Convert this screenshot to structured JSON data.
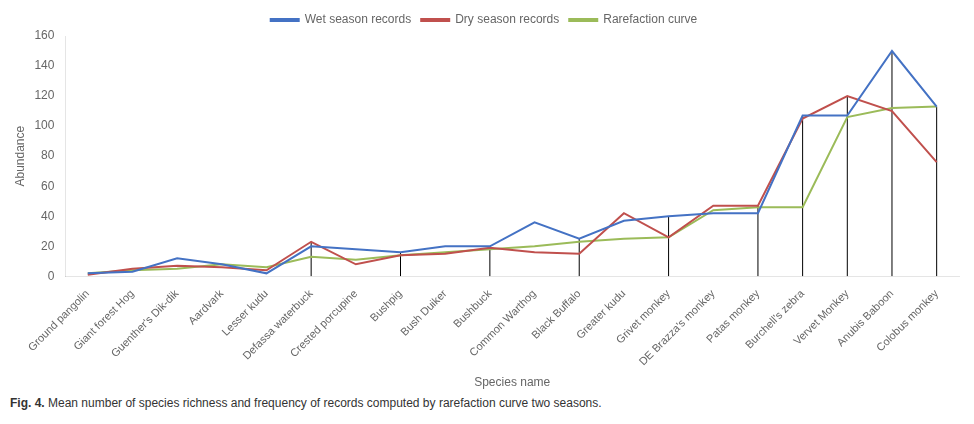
{
  "chart_data": {
    "type": "line",
    "xlabel": "Species name",
    "ylabel": "Abundance",
    "categories": [
      "Ground pangolin",
      "Giant forest Hog",
      "Guenther's Dik-dik",
      "Aardvark",
      "Lesser kudu",
      "Defassa waterbuck",
      "Crested porcupine",
      "Bushpig",
      "Bush Duiker",
      "Bushbuck",
      "Common Warthog",
      "Black Buffalo",
      "Greater kudu",
      "Grivet monkey",
      "DE Brazza's monkey",
      "Patas monkey",
      "Burchell's zebra",
      "Vervet Monkey",
      "Anubis Baboon",
      "Colobus monkey"
    ],
    "series": [
      {
        "name": "Wet season records",
        "color": "#4472C4",
        "values": [
          2,
          3,
          12,
          8,
          2,
          20,
          18,
          16,
          20,
          20,
          36,
          25,
          37,
          40,
          42,
          42,
          107,
          107,
          150,
          113
        ]
      },
      {
        "name": "Dry season records",
        "color": "#C0504D",
        "values": [
          1,
          5,
          7,
          6,
          4,
          23,
          8,
          14,
          15,
          19,
          16,
          15,
          42,
          26,
          47,
          47,
          105,
          120,
          110,
          76
        ]
      },
      {
        "name": "Rarefaction curve",
        "color": "#9BBB59",
        "values": [
          2,
          4,
          5,
          8,
          6,
          13,
          11,
          14,
          16,
          18,
          20,
          23,
          25,
          26,
          44,
          46,
          46,
          106,
          112,
          113
        ]
      }
    ],
    "vlines": [
      {
        "category": "Defassa waterbuck",
        "from": 0,
        "to": 23
      },
      {
        "category": "Bushpig",
        "from": 0,
        "to": 16
      },
      {
        "category": "Bushbuck",
        "from": 0,
        "to": 20
      },
      {
        "category": "Black Buffalo",
        "from": 0,
        "to": 25
      },
      {
        "category": "Grivet monkey",
        "from": 0,
        "to": 40
      },
      {
        "category": "Patas monkey",
        "from": 0,
        "to": 47
      },
      {
        "category": "Burchell's zebra",
        "from": 0,
        "to": 107
      },
      {
        "category": "Vervet Monkey",
        "from": 0,
        "to": 120
      },
      {
        "category": "Anubis Baboon",
        "from": 0,
        "to": 150
      },
      {
        "category": "Colobus monkey",
        "from": 0,
        "to": 113
      }
    ],
    "vline_color": "#000000",
    "ylim": [
      0,
      160
    ],
    "yticks": [
      0,
      20,
      40,
      60,
      80,
      100,
      120,
      140,
      160
    ],
    "grid": false,
    "legend": "top",
    "caption_label": "Fig. 4.",
    "caption": " Mean number of species richness and frequency of records computed by rarefaction curve two seasons."
  }
}
